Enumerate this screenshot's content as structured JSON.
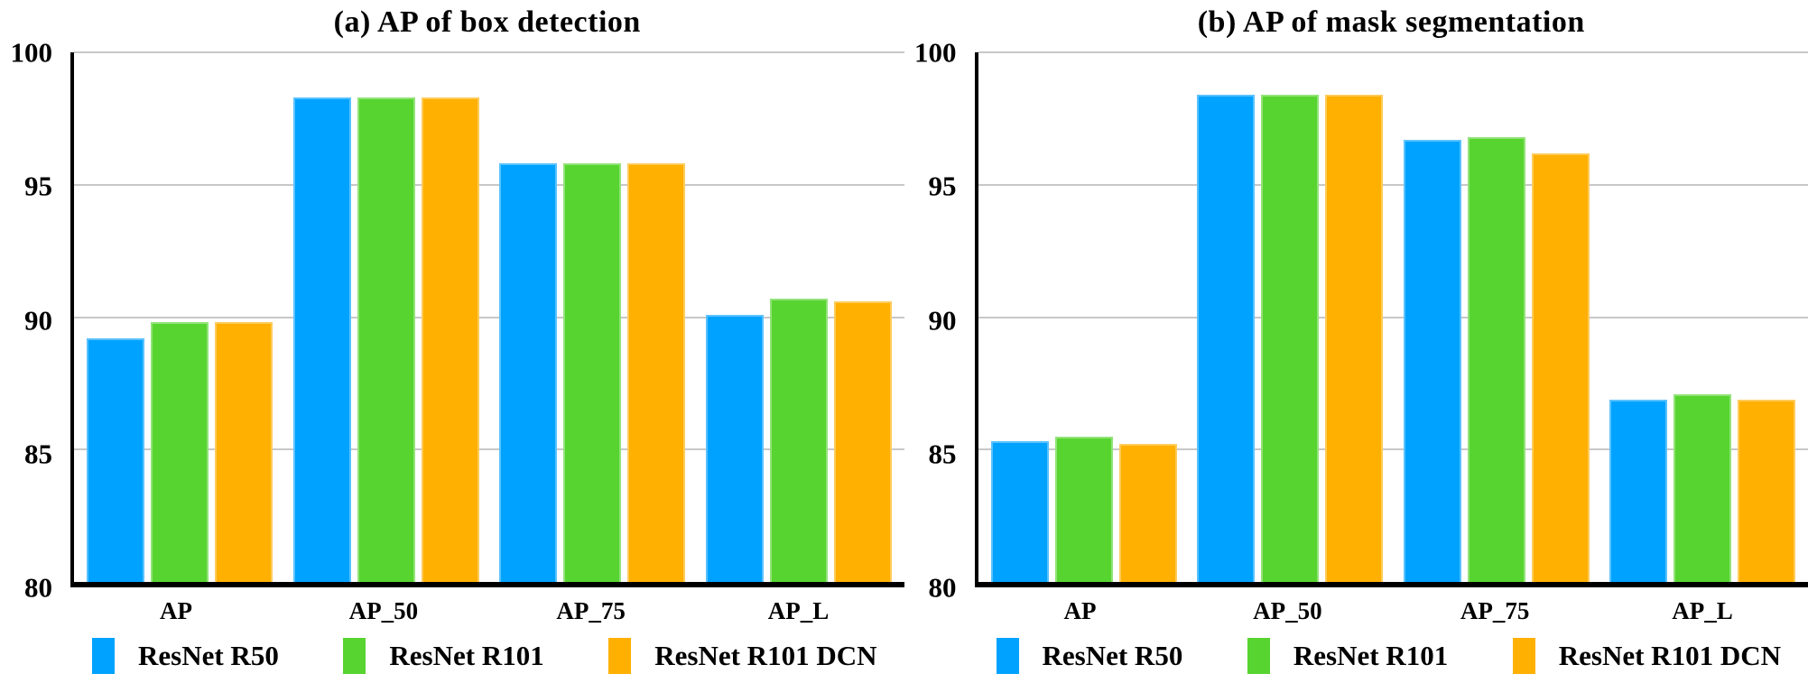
{
  "figure": {
    "background": "#FFFFFF"
  },
  "style": {
    "grid_color": "#C8C8C8",
    "axis_color": "#000000",
    "text_color": "#000000"
  },
  "chart_data": [
    {
      "type": "bar",
      "title": "(a) AP of box detection",
      "categories": [
        "AP",
        "AP_50",
        "AP_75",
        "AP_L"
      ],
      "series": [
        {
          "name": "ResNet R50",
          "color": "#00A2FF",
          "values": [
            89.2,
            98.3,
            95.8,
            90.1
          ]
        },
        {
          "name": "ResNet R101",
          "color": "#58D430",
          "values": [
            89.8,
            98.3,
            95.8,
            90.7
          ]
        },
        {
          "name": "ResNet R101 DCN",
          "color": "#FFB000",
          "values": [
            89.8,
            98.3,
            95.8,
            90.6
          ]
        }
      ],
      "xlabel": "",
      "ylabel": "",
      "ylim": [
        80,
        100
      ],
      "yticks": [
        80,
        85,
        90,
        95,
        100
      ],
      "grid": true,
      "legend_position": "bottom"
    },
    {
      "type": "bar",
      "title": "(b) AP of mask segmentation",
      "categories": [
        "AP",
        "AP_50",
        "AP_75",
        "AP_L"
      ],
      "series": [
        {
          "name": "ResNet R50",
          "color": "#00A2FF",
          "values": [
            85.3,
            98.4,
            96.7,
            86.9
          ]
        },
        {
          "name": "ResNet R101",
          "color": "#58D430",
          "values": [
            85.5,
            98.4,
            96.8,
            87.1
          ]
        },
        {
          "name": "ResNet R101 DCN",
          "color": "#FFB000",
          "values": [
            85.2,
            98.4,
            96.2,
            86.9
          ]
        }
      ],
      "xlabel": "",
      "ylabel": "",
      "ylim": [
        80,
        100
      ],
      "yticks": [
        80,
        85,
        90,
        95,
        100
      ],
      "grid": true,
      "legend_position": "bottom"
    }
  ]
}
